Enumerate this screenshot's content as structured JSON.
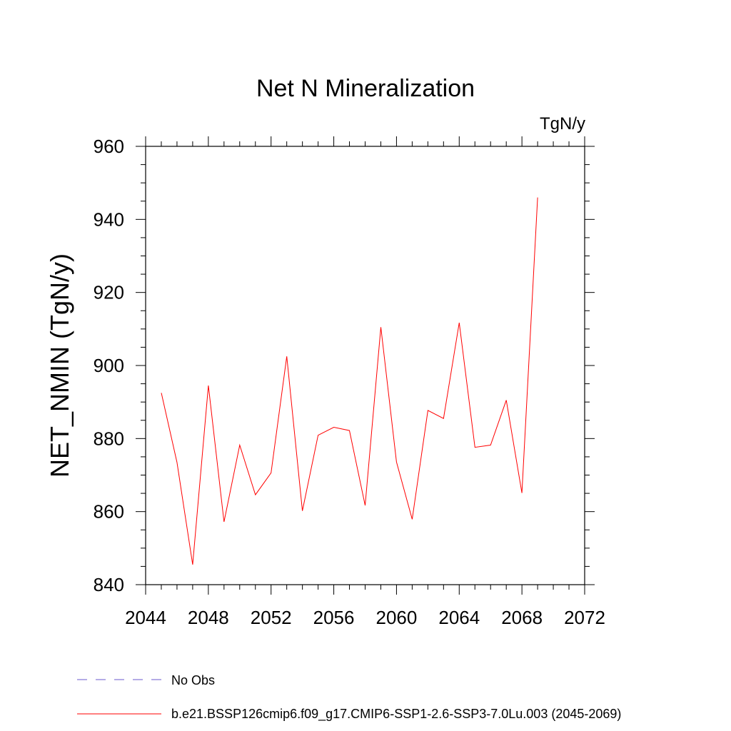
{
  "chart_data": {
    "type": "line",
    "title": "Net N Mineralization",
    "units_label": "TgN/y",
    "ylabel": "NET_NMIN  (TgN/y)",
    "xlabel": "",
    "xlim": [
      2044,
      2072
    ],
    "ylim": [
      840,
      960
    ],
    "x_ticks": [
      2044,
      2048,
      2052,
      2056,
      2060,
      2064,
      2068,
      2072
    ],
    "x_tick_labels": [
      "2044",
      "2048",
      "2052",
      "2056",
      "2060",
      "2064",
      "2068",
      "2072"
    ],
    "y_ticks": [
      840,
      860,
      880,
      900,
      920,
      940,
      960
    ],
    "y_tick_labels": [
      "840",
      "860",
      "880",
      "900",
      "920",
      "940",
      "960"
    ],
    "grid": false,
    "legend_placement": "bottom",
    "legend": [
      {
        "label": "No Obs",
        "style": "dashed",
        "color": "#6a5acd"
      },
      {
        "label": "b.e21.BSSP126cmip6.f09_g17.CMIP6-SSP1-2.6-SSP3-7.0Lu.003 (2045-2069)",
        "style": "solid",
        "color": "#ff0000"
      }
    ],
    "series": [
      {
        "name": "b.e21.BSSP126cmip6.f09_g17.CMIP6-SSP1-2.6-SSP3-7.0Lu.003 (2045-2069)",
        "color": "#ff0000",
        "x": [
          2045,
          2046,
          2047,
          2048,
          2049,
          2050,
          2051,
          2052,
          2053,
          2054,
          2055,
          2056,
          2057,
          2058,
          2059,
          2060,
          2061,
          2062,
          2063,
          2064,
          2065,
          2066,
          2067,
          2068,
          2069
        ],
        "y": [
          892.5,
          873.5,
          845.5,
          894.5,
          857.2,
          878.2,
          864.6,
          870.6,
          902.5,
          860.2,
          880.9,
          883.1,
          882.2,
          861.7,
          910.5,
          873.6,
          857.9,
          887.7,
          885.5,
          911.7,
          877.6,
          878.2,
          890.5,
          865.1,
          946.0
        ]
      }
    ]
  }
}
